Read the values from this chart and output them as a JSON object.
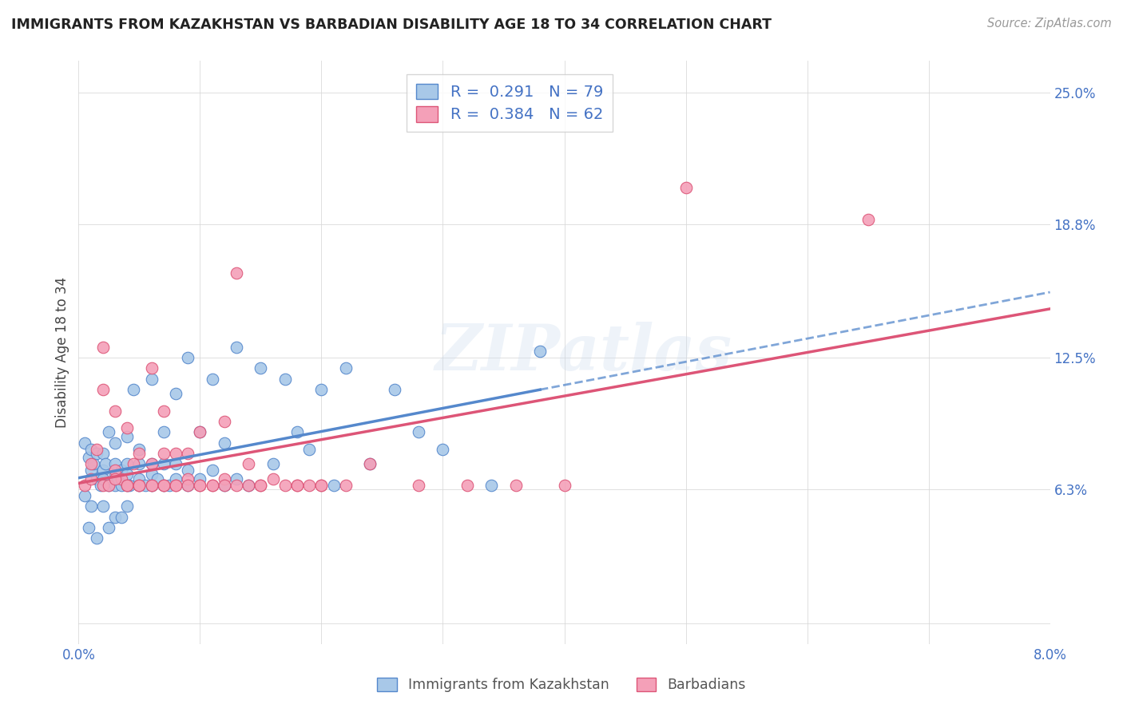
{
  "title": "IMMIGRANTS FROM KAZAKHSTAN VS BARBADIAN DISABILITY AGE 18 TO 34 CORRELATION CHART",
  "source": "Source: ZipAtlas.com",
  "ylabel": "Disability Age 18 to 34",
  "xlim": [
    0.0,
    0.08
  ],
  "ylim": [
    -0.01,
    0.265
  ],
  "xticks": [
    0.0,
    0.01,
    0.02,
    0.03,
    0.04,
    0.05,
    0.06,
    0.07,
    0.08
  ],
  "xticklabels": [
    "0.0%",
    "",
    "",
    "",
    "",
    "",
    "",
    "",
    "8.0%"
  ],
  "ytick_positions": [
    0.0,
    0.063,
    0.125,
    0.188,
    0.25
  ],
  "yticklabels": [
    "",
    "6.3%",
    "12.5%",
    "18.8%",
    "25.0%"
  ],
  "color_kaz": "#a8c8e8",
  "color_barb": "#f4a0b8",
  "trend_color_kaz": "#5588cc",
  "trend_color_barb": "#dd5577",
  "blue_text_color": "#4472c4",
  "watermark": "ZIPatlas",
  "legend_r1": "0.291",
  "legend_n1": "79",
  "legend_r2": "0.384",
  "legend_n2": "62",
  "kaz_x": [
    0.0005,
    0.0008,
    0.001,
    0.001,
    0.0012,
    0.0015,
    0.0015,
    0.0018,
    0.002,
    0.002,
    0.002,
    0.0022,
    0.0025,
    0.0025,
    0.003,
    0.003,
    0.003,
    0.003,
    0.0032,
    0.0035,
    0.0035,
    0.004,
    0.004,
    0.004,
    0.004,
    0.0042,
    0.0045,
    0.005,
    0.005,
    0.005,
    0.005,
    0.0055,
    0.006,
    0.006,
    0.006,
    0.006,
    0.0065,
    0.007,
    0.007,
    0.007,
    0.0075,
    0.008,
    0.008,
    0.008,
    0.009,
    0.009,
    0.009,
    0.01,
    0.01,
    0.011,
    0.011,
    0.012,
    0.012,
    0.013,
    0.013,
    0.014,
    0.015,
    0.016,
    0.017,
    0.018,
    0.019,
    0.02,
    0.021,
    0.022,
    0.024,
    0.026,
    0.028,
    0.03,
    0.034,
    0.038,
    0.0005,
    0.0008,
    0.001,
    0.0015,
    0.002,
    0.0025,
    0.003,
    0.0035,
    0.004
  ],
  "kaz_y": [
    0.085,
    0.078,
    0.072,
    0.082,
    0.075,
    0.068,
    0.08,
    0.065,
    0.072,
    0.08,
    0.068,
    0.075,
    0.065,
    0.09,
    0.065,
    0.07,
    0.075,
    0.085,
    0.068,
    0.072,
    0.065,
    0.065,
    0.07,
    0.075,
    0.088,
    0.065,
    0.11,
    0.065,
    0.068,
    0.075,
    0.082,
    0.065,
    0.065,
    0.07,
    0.075,
    0.115,
    0.068,
    0.065,
    0.075,
    0.09,
    0.065,
    0.068,
    0.075,
    0.108,
    0.065,
    0.072,
    0.125,
    0.068,
    0.09,
    0.072,
    0.115,
    0.065,
    0.085,
    0.068,
    0.13,
    0.065,
    0.12,
    0.075,
    0.115,
    0.09,
    0.082,
    0.11,
    0.065,
    0.12,
    0.075,
    0.11,
    0.09,
    0.082,
    0.065,
    0.128,
    0.06,
    0.045,
    0.055,
    0.04,
    0.055,
    0.045,
    0.05,
    0.05,
    0.055
  ],
  "barb_x": [
    0.0005,
    0.001,
    0.0015,
    0.002,
    0.002,
    0.0025,
    0.003,
    0.003,
    0.0035,
    0.004,
    0.004,
    0.0045,
    0.005,
    0.005,
    0.006,
    0.006,
    0.006,
    0.007,
    0.007,
    0.007,
    0.008,
    0.008,
    0.009,
    0.009,
    0.01,
    0.01,
    0.011,
    0.012,
    0.012,
    0.013,
    0.014,
    0.015,
    0.016,
    0.017,
    0.018,
    0.019,
    0.02,
    0.022,
    0.024,
    0.028,
    0.032,
    0.036,
    0.04,
    0.001,
    0.002,
    0.003,
    0.004,
    0.005,
    0.006,
    0.007,
    0.008,
    0.009,
    0.01,
    0.011,
    0.012,
    0.013,
    0.014,
    0.015,
    0.018,
    0.02,
    0.05,
    0.065
  ],
  "barb_y": [
    0.065,
    0.068,
    0.082,
    0.065,
    0.11,
    0.065,
    0.072,
    0.1,
    0.068,
    0.065,
    0.092,
    0.075,
    0.065,
    0.08,
    0.065,
    0.075,
    0.12,
    0.065,
    0.08,
    0.1,
    0.065,
    0.08,
    0.068,
    0.08,
    0.065,
    0.09,
    0.065,
    0.068,
    0.095,
    0.065,
    0.075,
    0.065,
    0.068,
    0.065,
    0.065,
    0.065,
    0.065,
    0.065,
    0.075,
    0.065,
    0.065,
    0.065,
    0.065,
    0.075,
    0.13,
    0.068,
    0.065,
    0.065,
    0.065,
    0.065,
    0.065,
    0.065,
    0.065,
    0.065,
    0.065,
    0.165,
    0.065,
    0.065,
    0.065,
    0.065,
    0.205,
    0.19
  ]
}
